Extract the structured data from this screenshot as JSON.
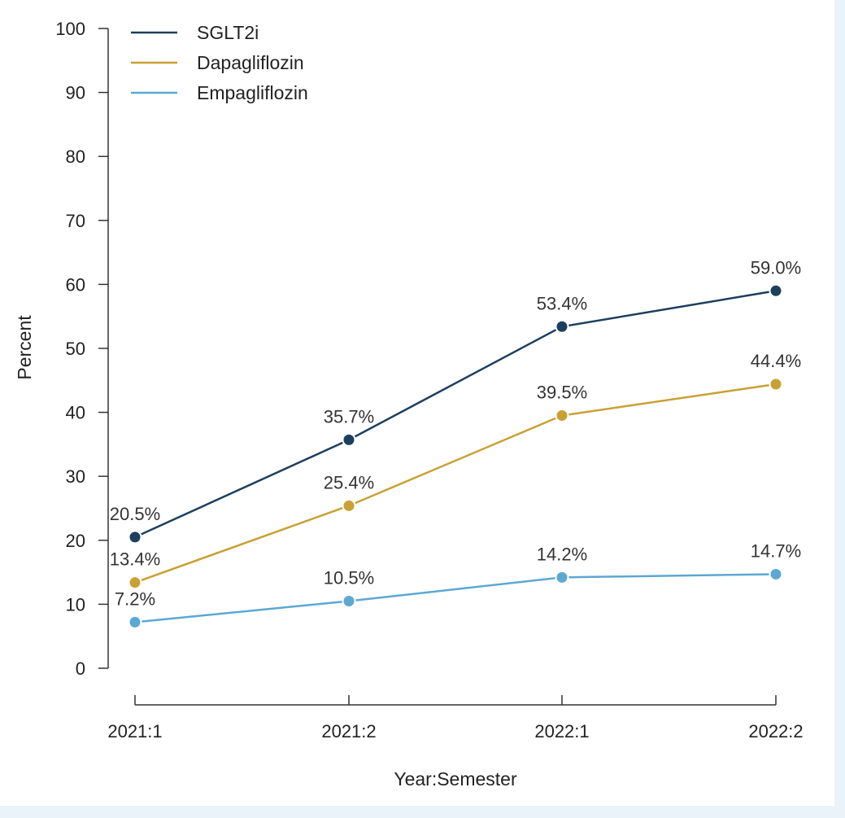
{
  "chart_data": {
    "type": "line",
    "categories": [
      "2021:1",
      "2021:2",
      "2022:1",
      "2022:2"
    ],
    "xlabel": "Year:Semester",
    "ylabel": "Percent",
    "ylim": [
      0,
      100
    ],
    "yticks": [
      0,
      10,
      20,
      30,
      40,
      50,
      60,
      70,
      80,
      90,
      100
    ],
    "grid": false,
    "legend_position": "top-left",
    "series": [
      {
        "name": "SGLT2i",
        "color": "#1c3f5e",
        "values": [
          20.5,
          35.7,
          53.4,
          59.0
        ],
        "labels": [
          "20.5%",
          "35.7%",
          "53.4%",
          "59.0%"
        ]
      },
      {
        "name": "Dapagliflozin",
        "color": "#c9a033",
        "values": [
          13.4,
          25.4,
          39.5,
          44.4
        ],
        "labels": [
          "13.4%",
          "25.4%",
          "39.5%",
          "44.4%"
        ]
      },
      {
        "name": "Empagliflozin",
        "color": "#5ba8d2",
        "values": [
          7.2,
          10.5,
          14.2,
          14.7
        ],
        "labels": [
          "7.2%",
          "10.5%",
          "14.2%",
          "14.7%"
        ]
      }
    ]
  }
}
